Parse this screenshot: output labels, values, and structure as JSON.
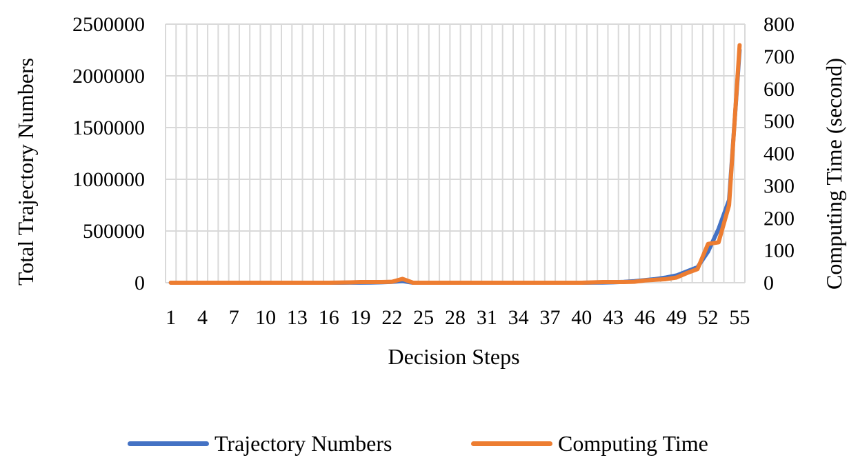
{
  "chart_data": {
    "type": "line",
    "xlabel": "Decision Steps",
    "ylabel": "Total Trajectory Numbers",
    "y2label": "Computing Time (second)",
    "x": [
      1,
      2,
      3,
      4,
      5,
      6,
      7,
      8,
      9,
      10,
      11,
      12,
      13,
      14,
      15,
      16,
      17,
      18,
      19,
      20,
      21,
      22,
      23,
      24,
      25,
      26,
      27,
      28,
      29,
      30,
      31,
      32,
      33,
      34,
      35,
      36,
      37,
      38,
      39,
      40,
      41,
      42,
      43,
      44,
      45,
      46,
      47,
      48,
      49,
      50,
      51,
      52,
      53,
      54,
      55
    ],
    "xticks": [
      "1",
      "4",
      "7",
      "10",
      "13",
      "16",
      "19",
      "22",
      "25",
      "28",
      "31",
      "34",
      "37",
      "40",
      "43",
      "46",
      "49",
      "52",
      "55"
    ],
    "ylim": [
      0,
      2500000
    ],
    "yticks": [
      "0",
      "500000",
      "1000000",
      "1500000",
      "2000000",
      "2500000"
    ],
    "y2lim": [
      0,
      800
    ],
    "y2ticks": [
      "0",
      "100",
      "200",
      "300",
      "400",
      "500",
      "600",
      "700",
      "800"
    ],
    "grid": true,
    "legend_position": "bottom",
    "series": [
      {
        "name": "Trajectory Numbers",
        "axis": "left",
        "color": "#4472C4",
        "values": [
          0,
          0,
          0,
          0,
          0,
          0,
          0,
          0,
          0,
          0,
          0,
          0,
          0,
          0,
          0,
          0,
          0,
          500,
          1000,
          2000,
          4000,
          8000,
          16000,
          0,
          0,
          0,
          0,
          0,
          0,
          0,
          0,
          0,
          0,
          0,
          0,
          0,
          0,
          0,
          0,
          0,
          1000,
          2000,
          4000,
          8000,
          15000,
          25000,
          35000,
          50000,
          70000,
          110000,
          150000,
          300000,
          520000,
          800000,
          2250000
        ]
      },
      {
        "name": "Computing Time",
        "axis": "right",
        "color": "#ED7D31",
        "values": [
          0,
          0,
          0,
          0,
          0,
          0,
          0,
          0,
          0,
          0,
          0,
          0,
          0,
          0,
          0,
          0,
          0.5,
          1,
          2,
          2,
          2,
          3,
          12,
          0,
          0,
          0,
          0,
          0,
          0,
          0,
          0,
          0,
          0,
          0,
          0,
          0,
          0,
          0,
          0,
          0,
          1,
          2,
          2,
          2,
          3,
          7,
          9,
          11,
          16,
          30,
          42,
          120,
          125,
          240,
          735
        ]
      }
    ]
  }
}
